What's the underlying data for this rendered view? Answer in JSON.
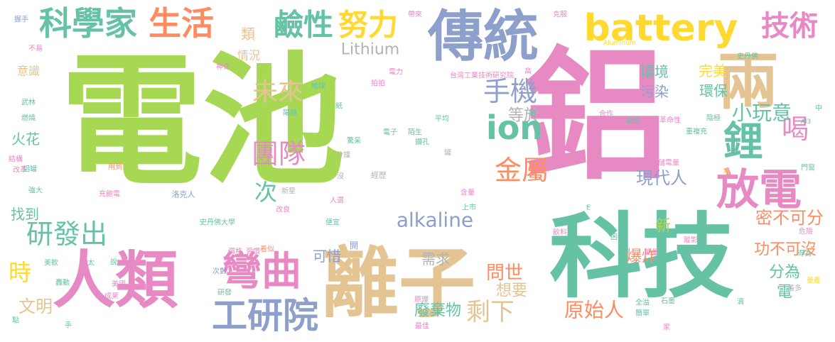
{
  "palette": {
    "green": "#a6d854",
    "pink": "#e78ac3",
    "teal": "#66c2a5",
    "tan": "#e5c494",
    "blue": "#8da0cb",
    "orange": "#fc8d62",
    "yellow": "#ffd92f",
    "gray": "#b3b3b3"
  },
  "words": [
    {
      "text": "電池",
      "color": "green"
    },
    {
      "text": "鋁",
      "color": "pink"
    },
    {
      "text": "科技",
      "color": "teal"
    },
    {
      "text": "傳統",
      "color": "blue"
    },
    {
      "text": "離子",
      "color": "tan"
    },
    {
      "text": "人類",
      "color": "pink"
    },
    {
      "text": "兩",
      "color": "tan"
    },
    {
      "text": "battery",
      "color": "yellow"
    },
    {
      "text": "放電",
      "color": "pink"
    },
    {
      "text": "鋰",
      "color": "teal"
    },
    {
      "text": "彎曲",
      "color": "pink"
    },
    {
      "text": "工研院",
      "color": "blue"
    },
    {
      "text": "科學家",
      "color": "teal"
    },
    {
      "text": "生活",
      "color": "orange"
    },
    {
      "text": "鹼性",
      "color": "teal"
    },
    {
      "text": "努力",
      "color": "yellow"
    },
    {
      "text": "技術",
      "color": "pink"
    },
    {
      "text": "ion",
      "color": "teal"
    },
    {
      "text": "金屬",
      "color": "orange"
    },
    {
      "text": "團隊",
      "color": "pink"
    },
    {
      "text": "研發出",
      "color": "teal"
    },
    {
      "text": "手機",
      "color": "blue"
    },
    {
      "text": "未來",
      "color": "tan"
    },
    {
      "text": "喝",
      "color": "pink"
    },
    {
      "text": "小玩意",
      "color": "teal"
    },
    {
      "text": "次",
      "color": "teal"
    },
    {
      "text": "時",
      "color": "yellow"
    },
    {
      "text": "剩下",
      "color": "tan"
    },
    {
      "text": "原始人",
      "color": "orange"
    },
    {
      "text": "alkaline",
      "color": "blue"
    },
    {
      "text": "Lithium",
      "color": "gray"
    },
    {
      "text": "現代人",
      "color": "blue"
    },
    {
      "text": "密不可分",
      "color": "orange"
    },
    {
      "text": "問世",
      "color": "orange"
    },
    {
      "text": "文明",
      "color": "tan"
    },
    {
      "text": "廢棄物",
      "color": "teal"
    },
    {
      "text": "爆炸",
      "color": "orange"
    },
    {
      "text": "功不可沒",
      "color": "orange"
    },
    {
      "text": "可惜",
      "color": "blue"
    },
    {
      "text": "需求",
      "color": "gray"
    },
    {
      "text": "想要",
      "color": "tan"
    },
    {
      "text": "分為",
      "color": "teal"
    },
    {
      "text": "電",
      "color": "teal"
    },
    {
      "text": "新",
      "color": "green"
    },
    {
      "text": "火花",
      "color": "teal"
    },
    {
      "text": "找到",
      "color": "teal"
    },
    {
      "text": "等於",
      "color": "gray"
    },
    {
      "text": "環境",
      "color": "teal"
    },
    {
      "text": "污染",
      "color": "blue"
    },
    {
      "text": "環保",
      "color": "teal"
    },
    {
      "text": "完美",
      "color": "yellow"
    },
    {
      "text": "類",
      "color": "tan"
    },
    {
      "text": "情況",
      "color": "tan"
    },
    {
      "text": "意識",
      "color": "tan"
    },
    {
      "text": "台灣工業技術研究院",
      "color": "pink"
    },
    {
      "text": "史丹佛大學",
      "color": "teal"
    },
    {
      "text": "洛克人",
      "color": "blue"
    },
    {
      "text": "充飽電",
      "color": "pink"
    },
    {
      "text": "用到",
      "color": "orange"
    },
    {
      "text": "新星",
      "color": "gray"
    },
    {
      "text": "經歷",
      "color": "gray"
    },
    {
      "text": "改良",
      "color": "pink"
    },
    {
      "text": "人選",
      "color": "pink"
    },
    {
      "text": "便宜",
      "color": "teal"
    },
    {
      "text": "開",
      "color": "blue"
    },
    {
      "text": "分鐘",
      "color": "gray"
    },
    {
      "text": "電子",
      "color": "teal"
    },
    {
      "text": "陌生",
      "color": "teal"
    },
    {
      "text": "驚呆",
      "color": "teal"
    },
    {
      "text": "鑽孔",
      "color": "teal"
    },
    {
      "text": "平均",
      "color": "teal"
    },
    {
      "text": "紙",
      "color": "teal"
    },
    {
      "text": "地球",
      "color": "teal"
    },
    {
      "text": "陽極",
      "color": "teal"
    },
    {
      "text": "神奇",
      "color": "pink"
    },
    {
      "text": "拍拍",
      "color": "pink"
    },
    {
      "text": "電力",
      "color": "pink"
    },
    {
      "text": "不易",
      "color": "pink"
    },
    {
      "text": "握手",
      "color": "blue"
    },
    {
      "text": "帶來",
      "color": "pink"
    },
    {
      "text": "克服",
      "color": "pink"
    },
    {
      "text": "Aluminum",
      "color": "yellow"
    },
    {
      "text": "史丹佛",
      "color": "teal"
    },
    {
      "text": "高",
      "color": "pink"
    },
    {
      "text": "合作",
      "color": "pink"
    },
    {
      "text": "革命性",
      "color": "pink"
    },
    {
      "text": "陰極",
      "color": "teal"
    },
    {
      "text": "高速",
      "color": "teal"
    },
    {
      "text": "重複充",
      "color": "teal"
    },
    {
      "text": "中",
      "color": "teal"
    },
    {
      "text": "Al3",
      "color": "teal"
    },
    {
      "text": "儲電量",
      "color": "pink"
    },
    {
      "text": "門窗",
      "color": "teal"
    },
    {
      "text": "項",
      "color": "yellow"
    },
    {
      "text": "年",
      "color": "pink"
    },
    {
      "text": "E",
      "color": "teal"
    },
    {
      "text": "含量",
      "color": "pink"
    },
    {
      "text": "上市",
      "color": "teal"
    },
    {
      "text": "飲料",
      "color": "pink"
    },
    {
      "text": "蹤影",
      "color": "pink"
    },
    {
      "text": "困難",
      "color": "teal"
    },
    {
      "text": "能量",
      "color": "pink"
    },
    {
      "text": "危險",
      "color": "pink"
    },
    {
      "text": "得為",
      "color": "teal"
    },
    {
      "text": "最多",
      "color": "gray"
    },
    {
      "text": "量產",
      "color": "yellow"
    },
    {
      "text": "石墨",
      "color": "teal"
    },
    {
      "text": "滴",
      "color": "teal"
    },
    {
      "text": "全溢",
      "color": "teal"
    },
    {
      "text": "簡單",
      "color": "teal"
    },
    {
      "text": "家",
      "color": "pink"
    },
    {
      "text": "最佳",
      "color": "pink"
    },
    {
      "text": "原理",
      "color": "pink"
    },
    {
      "text": "次數",
      "color": "blue"
    },
    {
      "text": "習慣",
      "color": "pink"
    },
    {
      "text": "看似",
      "color": "orange"
    },
    {
      "text": "價格",
      "color": "pink"
    },
    {
      "text": "研發",
      "color": "teal"
    },
    {
      "text": "成果",
      "color": "pink"
    },
    {
      "text": "美國",
      "color": "pink"
    },
    {
      "text": "說",
      "color": "teal"
    },
    {
      "text": "太",
      "color": "teal"
    },
    {
      "text": "美軟",
      "color": "teal"
    },
    {
      "text": "轟動",
      "color": "teal"
    },
    {
      "text": "手",
      "color": "teal"
    },
    {
      "text": "點",
      "color": "teal"
    },
    {
      "text": "強大",
      "color": "teal"
    },
    {
      "text": "鋁罐",
      "color": "teal"
    },
    {
      "text": "改革",
      "color": "pink"
    },
    {
      "text": "結構",
      "color": "pink"
    },
    {
      "text": "燃燒",
      "color": "teal"
    },
    {
      "text": "武林",
      "color": "teal"
    },
    {
      "text": "沒",
      "color": "gray"
    },
    {
      "text": "罐",
      "color": "gray"
    },
    {
      "text": "怕",
      "color": "teal"
    }
  ]
}
